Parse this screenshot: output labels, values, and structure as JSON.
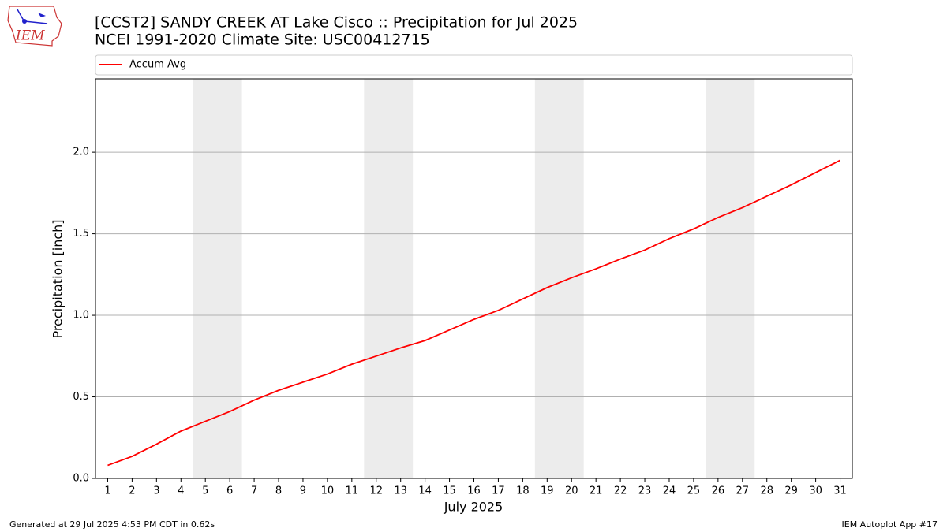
{
  "logo": "IEM",
  "footer_left": "Generated at 29 Jul 2025 4:53 PM CDT in 0.62s",
  "footer_right": "IEM Autoplot App #17",
  "chart_data": {
    "type": "line",
    "title": "[CCST2] SANDY CREEK  AT Lake Cisco :: Precipitation for Jul 2025",
    "subtitle": "NCEI 1991-2020 Climate Site: USC00412715",
    "x_label": "July 2025",
    "y_label": "Precipitation [inch]",
    "x": [
      1,
      2,
      3,
      4,
      5,
      6,
      7,
      8,
      9,
      10,
      11,
      12,
      13,
      14,
      15,
      16,
      17,
      18,
      19,
      20,
      21,
      22,
      23,
      24,
      25,
      26,
      27,
      28,
      29,
      30,
      31
    ],
    "series": [
      {
        "name": "Accum Avg",
        "color": "#ff0000",
        "values": [
          0.08,
          0.135,
          0.21,
          0.29,
          0.35,
          0.41,
          0.48,
          0.54,
          0.59,
          0.64,
          0.7,
          0.75,
          0.8,
          0.845,
          0.91,
          0.975,
          1.03,
          1.1,
          1.17,
          1.23,
          1.285,
          1.345,
          1.4,
          1.47,
          1.53,
          1.6,
          1.66,
          1.73,
          1.8,
          1.875,
          1.95
        ]
      }
    ],
    "shaded_spans": [
      [
        4.5,
        6.5
      ],
      [
        11.5,
        13.5
      ],
      [
        18.5,
        20.5
      ],
      [
        25.5,
        27.5
      ]
    ],
    "shade_color": "#ececec",
    "xlim": [
      0.5,
      31.5
    ],
    "xticks": [
      1,
      2,
      3,
      4,
      5,
      6,
      7,
      8,
      9,
      10,
      11,
      12,
      13,
      14,
      15,
      16,
      17,
      18,
      19,
      20,
      21,
      22,
      23,
      24,
      25,
      26,
      27,
      28,
      29,
      30,
      31
    ],
    "ylim": [
      0,
      2.45
    ],
    "yticks": [
      {
        "value": 0,
        "label": "0.0"
      },
      0.5,
      {
        "value": 1,
        "label": "1.0"
      },
      1.5,
      {
        "value": 2,
        "label": "2.0"
      }
    ],
    "grid": true,
    "legend": "top"
  }
}
